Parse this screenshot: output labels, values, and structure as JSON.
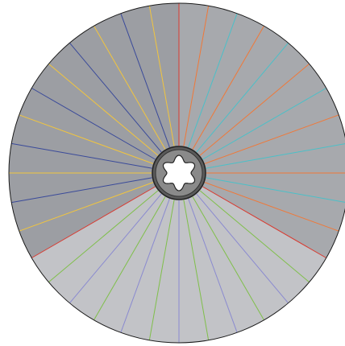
{
  "diagram": {
    "type": "radial-sector-disc",
    "spoke_count": 36,
    "first_spoke_angle_deg": 0,
    "spoke_step_deg": 10,
    "sectors": [
      {
        "name": "right-upper-sector",
        "start_spoke": 0,
        "end_spoke": 12,
        "fill": "#a7a9ad"
      },
      {
        "name": "bottom-sector",
        "start_spoke": 12,
        "end_spoke": 24,
        "fill": "#c2c3c7"
      },
      {
        "name": "left-upper-sector",
        "start_spoke": 24,
        "end_spoke": 36,
        "fill": "#9c9ea3"
      }
    ],
    "spoke_colors": [
      "#d83a30",
      "#f07838",
      "#4bc0c8",
      "#f07838",
      "#4bc0c8",
      "#f07838",
      "#4bc0c8",
      "#f07838",
      "#4bc0c8",
      "#f07838",
      "#4bc0c8",
      "#f07838",
      "#d83a30",
      "#7fbf4a",
      "#8a8ad0",
      "#7fbf4a",
      "#8a8ad0",
      "#7fbf4a",
      "#8a8ad0",
      "#7fbf4a",
      "#8a8ad0",
      "#7fbf4a",
      "#8a8ad0",
      "#7fbf4a",
      "#d83a30",
      "#f2c53d",
      "#3a4a9a",
      "#f2c53d",
      "#3a4a9a",
      "#f2c53d",
      "#3a4a9a",
      "#f2c53d",
      "#3a4a9a",
      "#f2c53d",
      "#3a4a9a",
      "#f2c53d"
    ],
    "outline_color": "#1a1a1a",
    "hub": {
      "ring_fill": "#5a5a5a",
      "core_fill": "#ffffff",
      "lobes": 6
    }
  }
}
